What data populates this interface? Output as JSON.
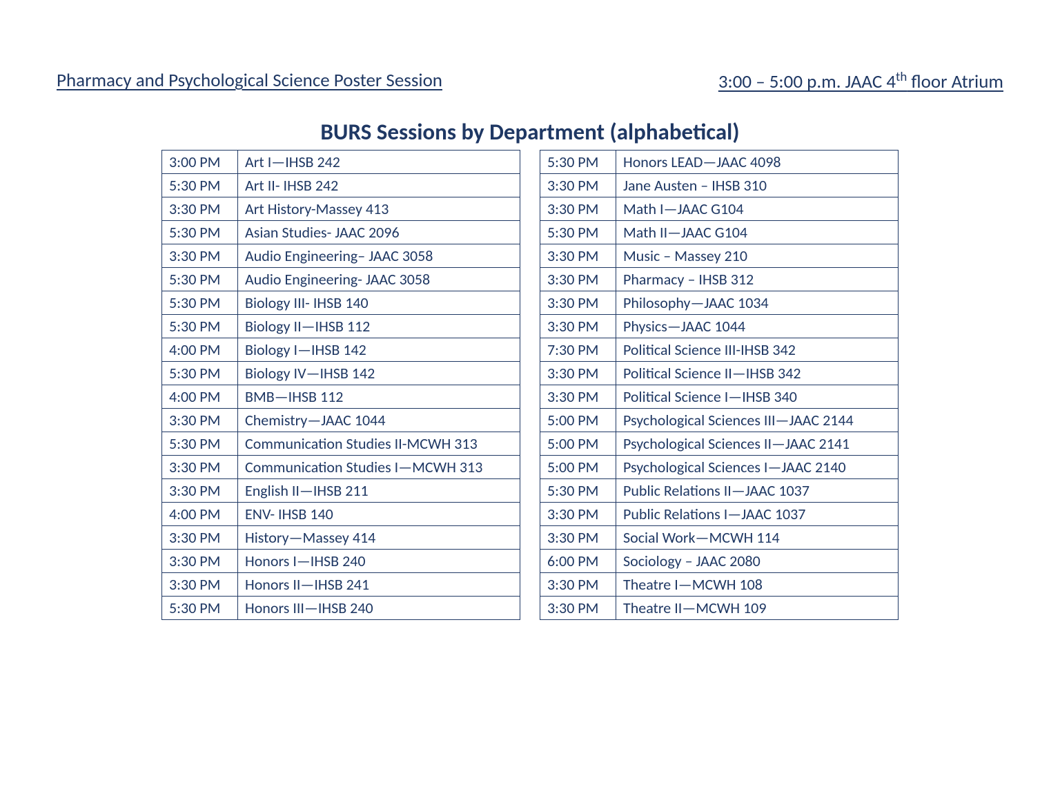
{
  "header": {
    "left": "Pharmacy and Psychological Science Poster Session",
    "right_prefix": "3:00 – 5:00 p.m.  JAAC 4",
    "right_sup": "th",
    "right_suffix": " floor Atrium"
  },
  "title": "BURS Sessions by Department (alphabetical)",
  "left_table": [
    {
      "time": "3:00 PM",
      "session": "Art I—IHSB 242"
    },
    {
      "time": "5:30 PM",
      "session": "Art II- IHSB 242"
    },
    {
      "time": "3:30 PM",
      "session": "Art History-Massey 413"
    },
    {
      "time": "5:30 PM",
      "session": "Asian Studies- JAAC 2096"
    },
    {
      "time": "3:30 PM",
      "session": "Audio Engineering– JAAC 3058"
    },
    {
      "time": "5:30 PM",
      "session": "Audio Engineering- JAAC 3058"
    },
    {
      "time": "5:30 PM",
      "session": "Biology III- IHSB 140"
    },
    {
      "time": "5:30 PM",
      "session": "Biology II—IHSB 112"
    },
    {
      "time": "4:00 PM",
      "session": "Biology I—IHSB 142"
    },
    {
      "time": "5:30 PM",
      "session": "Biology IV—IHSB 142"
    },
    {
      "time": "4:00 PM",
      "session": "BMB—IHSB 112"
    },
    {
      "time": "3:30 PM",
      "session": "Chemistry—JAAC 1044"
    },
    {
      "time": "5:30 PM",
      "session": "Communication Studies II-MCWH 313"
    },
    {
      "time": "3:30 PM",
      "session": "Communication Studies I—MCWH 313"
    },
    {
      "time": "3:30 PM",
      "session": "English II—IHSB 211"
    },
    {
      "time": "4:00 PM",
      "session": "ENV- IHSB 140"
    },
    {
      "time": "3:30 PM",
      "session": "History—Massey 414"
    },
    {
      "time": "3:30 PM",
      "session": "Honors I—IHSB 240"
    },
    {
      "time": "3:30 PM",
      "session": "Honors II—IHSB 241"
    },
    {
      "time": "5:30 PM",
      "session": "Honors III—IHSB 240"
    }
  ],
  "right_table": [
    {
      "time": "5:30 PM",
      "session": "Honors LEAD—JAAC 4098"
    },
    {
      "time": "3:30 PM",
      "session": "Jane Austen – IHSB 310"
    },
    {
      "time": "3:30 PM",
      "session": "Math I—JAAC G104"
    },
    {
      "time": "5:30 PM",
      "session": "Math II—JAAC G104"
    },
    {
      "time": "3:30 PM",
      "session": "Music – Massey 210"
    },
    {
      "time": "3:30 PM",
      "session": "Pharmacy – IHSB 312"
    },
    {
      "time": "3:30 PM",
      "session": "Philosophy—JAAC 1034"
    },
    {
      "time": "3:30 PM",
      "session": "Physics—JAAC 1044"
    },
    {
      "time": "7:30 PM",
      "session": "Political Science III-IHSB 342"
    },
    {
      "time": "3:30 PM",
      "session": "Political Science II—IHSB 342"
    },
    {
      "time": "3:30 PM",
      "session": "Political Science I—IHSB 340"
    },
    {
      "time": "5:00 PM",
      "session": "Psychological Sciences III—JAAC 2144"
    },
    {
      "time": "5:00 PM",
      "session": "Psychological Sciences II—JAAC 2141"
    },
    {
      "time": "5:00 PM",
      "session": "Psychological Sciences I—JAAC 2140"
    },
    {
      "time": "5:30 PM",
      "session": "Public Relations II—JAAC 1037"
    },
    {
      "time": "3:30 PM",
      "session": "Public Relations I—JAAC 1037"
    },
    {
      "time": "3:30 PM",
      "session": "Social Work—MCWH 114"
    },
    {
      "time": "6:00 PM",
      "session": "Sociology – JAAC 2080"
    },
    {
      "time": "3:30 PM",
      "session": "Theatre I—MCWH 108"
    },
    {
      "time": "3:30 PM",
      "session": "Theatre II—MCWH 109"
    }
  ]
}
